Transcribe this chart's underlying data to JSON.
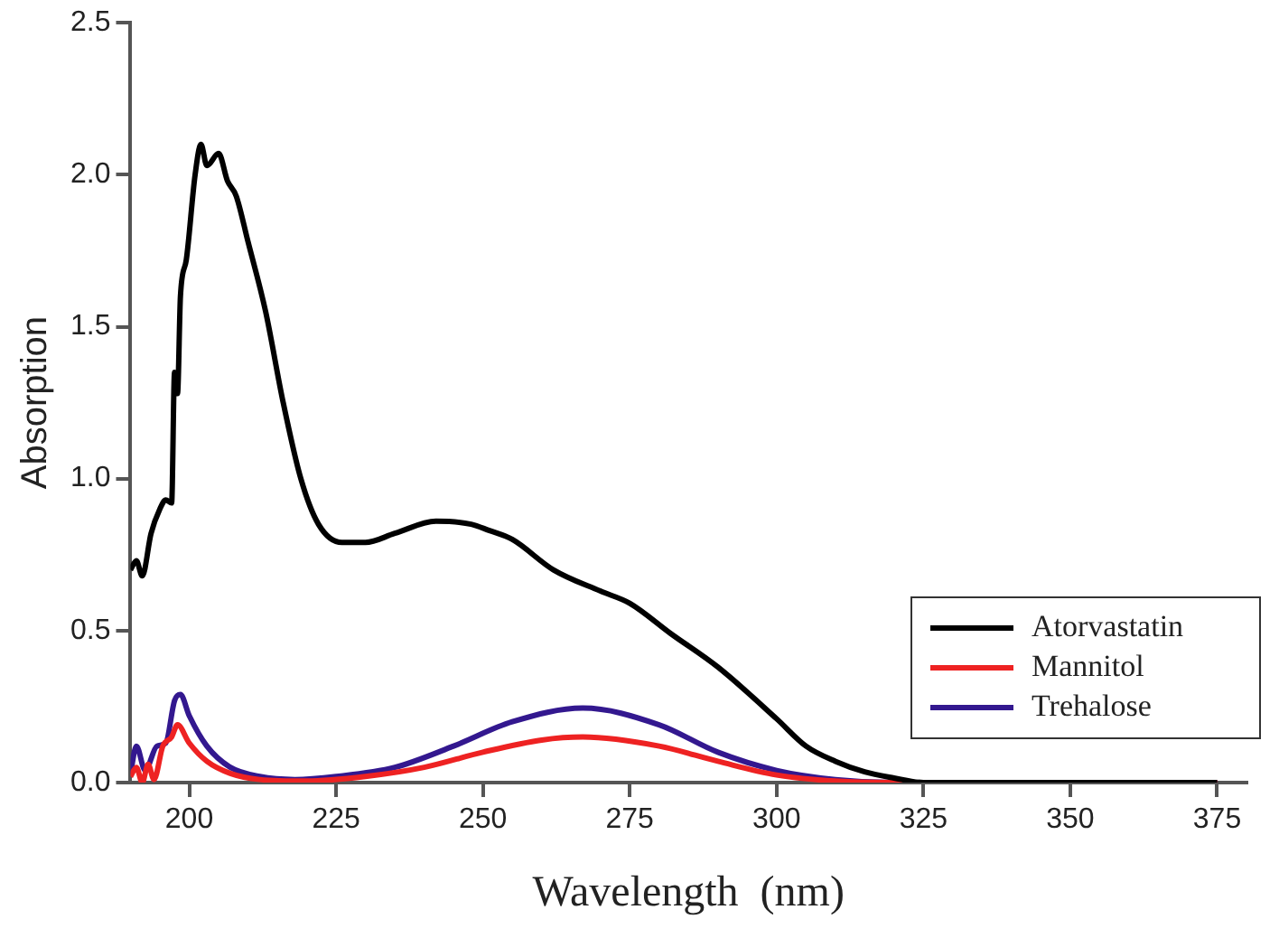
{
  "chart_data": {
    "type": "line",
    "xlabel": "Wavelength  (nm)",
    "ylabel": "Absorption",
    "xlim": [
      190,
      380
    ],
    "xticks": [
      200,
      225,
      250,
      275,
      300,
      325,
      350,
      375
    ],
    "ylim": [
      0,
      2.5
    ],
    "yticks": [
      {
        "value": 0,
        "label": "0.0"
      },
      {
        "value": 0.5,
        "label": "0.5"
      },
      {
        "value": 1,
        "label": "1.0"
      },
      {
        "value": 1.5,
        "label": "1.5"
      },
      {
        "value": 2,
        "label": "2.0"
      },
      {
        "value": 2.5,
        "label": "2.5"
      }
    ],
    "grid": false,
    "legend": "bottom right",
    "marker": "none",
    "line_style": "solid",
    "series": [
      {
        "name": "Atorvastatin",
        "color": "#000000",
        "x": [
          190,
          191,
          192,
          193.5,
          195,
          196,
          197,
          197.5,
          198,
          198.5,
          199.5,
          201,
          202,
          203,
          205,
          206.5,
          208,
          210,
          213,
          216,
          219,
          222,
          226,
          230,
          235,
          242,
          248,
          251,
          255,
          262,
          270,
          275,
          282,
          290,
          300,
          305,
          310,
          315,
          320,
          325,
          375
        ],
        "values": [
          0.7,
          0.73,
          0.68,
          0.82,
          0.9,
          0.93,
          0.92,
          1.35,
          1.28,
          1.6,
          1.72,
          2.0,
          2.1,
          2.03,
          2.07,
          1.98,
          1.93,
          1.78,
          1.55,
          1.25,
          1.0,
          0.85,
          0.79,
          0.79,
          0.82,
          0.86,
          0.85,
          0.83,
          0.8,
          0.7,
          0.63,
          0.59,
          0.49,
          0.38,
          0.21,
          0.12,
          0.07,
          0.035,
          0.015,
          0,
          0
        ]
      },
      {
        "name": "Mannitol",
        "color": "#ee2222",
        "x": [
          190,
          191,
          192,
          193,
          194,
          195.5,
          197,
          198,
          200,
          203,
          207,
          212,
          220,
          230,
          240,
          250,
          260,
          267,
          280,
          290,
          300,
          310,
          320,
          375
        ],
        "values": [
          0.02,
          0.05,
          0.0,
          0.06,
          0.01,
          0.12,
          0.15,
          0.19,
          0.13,
          0.07,
          0.03,
          0.01,
          0.005,
          0.02,
          0.05,
          0.1,
          0.14,
          0.15,
          0.12,
          0.07,
          0.025,
          0.005,
          0,
          0
        ]
      },
      {
        "name": "Trehalose",
        "color": "#33188f",
        "x": [
          190,
          191,
          192.5,
          194.5,
          196,
          197.5,
          198.5,
          200,
          203,
          207,
          212,
          218,
          225,
          235,
          245,
          255,
          267,
          280,
          290,
          300,
          310,
          320,
          375
        ],
        "values": [
          0.03,
          0.12,
          0.04,
          0.12,
          0.13,
          0.27,
          0.29,
          0.22,
          0.12,
          0.05,
          0.02,
          0.01,
          0.02,
          0.05,
          0.12,
          0.2,
          0.245,
          0.19,
          0.1,
          0.04,
          0.01,
          0,
          0
        ]
      }
    ]
  }
}
